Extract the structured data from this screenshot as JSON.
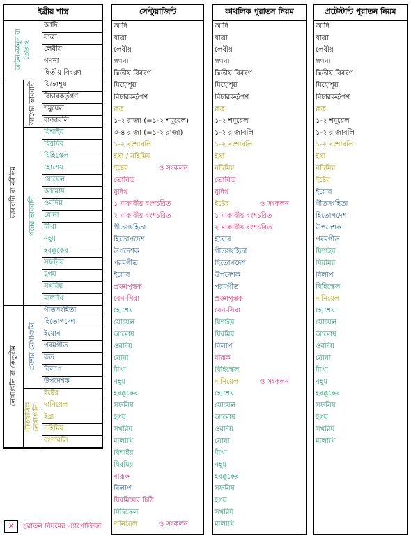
{
  "columns": [
    {
      "title": "ইব্রীয় শাস্ত্র",
      "groups": [
        {
          "label": "আইন-কানুন বা তোরাহ",
          "color": "#1a9a6a",
          "items": [
            {
              "text": "আদি",
              "color": "#000000"
            },
            {
              "text": "যাত্রা",
              "color": "#000000"
            },
            {
              "text": "লেবীয়",
              "color": "#000000"
            },
            {
              "text": "গণনা",
              "color": "#000000"
            },
            {
              "text": "দ্বিতীয় বিবরণ",
              "color": "#000000"
            }
          ]
        },
        {
          "label": "ভাববাদী বা নবীঈম",
          "color": "#000000",
          "subgroups": [
            {
              "label": "আগের ভাববাদী",
              "color": "#000000",
              "items": [
                {
                  "text": "যিহোশূয়",
                  "color": "#000000"
                },
                {
                  "text": "বিচারকর্তৃগণ",
                  "color": "#000000"
                },
                {
                  "text": "শমুয়েল",
                  "color": "#000000"
                },
                {
                  "text": "রাজাবলি",
                  "color": "#000000"
                }
              ]
            },
            {
              "label": "পরের ভাববাদী",
              "color": "#1a9a6a",
              "items": [
                {
                  "text": "যিশাইয়",
                  "color": "#1a9a6a"
                },
                {
                  "text": "যিরমিয়",
                  "color": "#1a9a6a"
                },
                {
                  "text": "যিহিস্কেল",
                  "color": "#1a9a6a"
                },
                {
                  "text": "হোশেয়",
                  "color": "#1a9a6a"
                },
                {
                  "text": "যোয়েল",
                  "color": "#1a9a6a"
                },
                {
                  "text": "আমোষ",
                  "color": "#1a9a6a"
                },
                {
                  "text": "ওবদিয়",
                  "color": "#1a9a6a"
                },
                {
                  "text": "যোনা",
                  "color": "#1a9a6a"
                },
                {
                  "text": "মীখা",
                  "color": "#1a9a6a"
                },
                {
                  "text": "নহূম",
                  "color": "#1a9a6a"
                },
                {
                  "text": "হবক্কূকের",
                  "color": "#1a9a6a"
                },
                {
                  "text": "সফনিয়",
                  "color": "#1a9a6a"
                },
                {
                  "text": "হগয়",
                  "color": "#1a9a6a"
                },
                {
                  "text": "সখরিয়",
                  "color": "#1a9a6a"
                },
                {
                  "text": "মালাখি",
                  "color": "#1a9a6a"
                }
              ]
            }
          ]
        },
        {
          "label": "লেখাগুলি বা কেতুবীম",
          "color": "#000000",
          "subgroups": [
            {
              "label": "প্রজ্ঞার লেখাগুলি",
              "color": "#1f5a8a",
              "items": [
                {
                  "text": "গীতসংহিতা",
                  "color": "#1f5a8a"
                },
                {
                  "text": "হিতোপদেশ",
                  "color": "#1f5a8a"
                },
                {
                  "text": "ইয়োব",
                  "color": "#1f5a8a"
                },
                {
                  "text": "পরমগীত",
                  "color": "#1f5a8a"
                },
                {
                  "text": "রূত",
                  "color": "#1f5a8a"
                },
                {
                  "text": "বিলাপ",
                  "color": "#1f5a8a"
                },
                {
                  "text": "উপদেশক",
                  "color": "#1f5a8a"
                }
              ]
            },
            {
              "label": "ঐতিহাসিক লেখাগুলি",
              "color": "#a8a000",
              "items": [
                {
                  "text": "ইষ্টের",
                  "color": "#a8a000"
                },
                {
                  "text": "দানিয়েল",
                  "color": "#a8a000"
                },
                {
                  "text": "ইষ্রা",
                  "color": "#a8a000"
                },
                {
                  "text": "নহিমিয়",
                  "color": "#a8a000"
                },
                {
                  "text": "বংশাবলি",
                  "color": "#a8a000"
                }
              ]
            }
          ]
        }
      ]
    },
    {
      "title": "সেপ্টুয়াজিন্ট",
      "items": [
        {
          "text": "আদি",
          "color": "#000000"
        },
        {
          "text": "যাত্রা",
          "color": "#000000"
        },
        {
          "text": "লেবীয়",
          "color": "#000000"
        },
        {
          "text": "গণনা",
          "color": "#000000"
        },
        {
          "text": "দ্বিতীয় বিবরণ",
          "color": "#000000"
        },
        {
          "text": "যিহোশূয়",
          "color": "#000000"
        },
        {
          "text": "বিচারকর্তৃগণ",
          "color": "#000000"
        },
        {
          "text": "রূত",
          "color": "#a8a000"
        },
        {
          "text": "১-২ রাজা (=১-২ শমূয়েল)",
          "color": "#000000"
        },
        {
          "text": "৩-৪ রাজা (=১-২ রাজা)",
          "color": "#000000"
        },
        {
          "text": "১-২ বংশাবলি",
          "color": "#a8a000"
        },
        {
          "text": "ইষ্রা / নহিমিয়",
          "color": "#a8a000"
        },
        {
          "text": "ইষ্টের",
          "color": "#a8a000",
          "note": "ও সংকলন",
          "note_color": "#e8206a"
        },
        {
          "text": "তোবিত",
          "color": "#e8206a"
        },
        {
          "text": "যুদিথ",
          "color": "#e8206a"
        },
        {
          "text": "১ মাকাবীয় বংশচরিত",
          "color": "#e8206a"
        },
        {
          "text": "২ মাকাবীয় বংশচরিত",
          "color": "#e8206a"
        },
        {
          "text": "গীতসংহিতা",
          "color": "#1f5a8a"
        },
        {
          "text": "হিতোপদেশ",
          "color": "#1f5a8a"
        },
        {
          "text": "উপদেশক",
          "color": "#1f5a8a"
        },
        {
          "text": "পরমগীত",
          "color": "#1f5a8a"
        },
        {
          "text": "ইয়োব",
          "color": "#1f5a8a"
        },
        {
          "text": "প্রজ্ঞাপুস্তক",
          "color": "#e8206a"
        },
        {
          "text": "বেন-সিরা",
          "color": "#e8206a"
        },
        {
          "text": "হোশেয়",
          "color": "#1a9a6a"
        },
        {
          "text": "যোয়েল",
          "color": "#1a9a6a"
        },
        {
          "text": "আমোষ",
          "color": "#1a9a6a"
        },
        {
          "text": "ওবদিয়",
          "color": "#1a9a6a"
        },
        {
          "text": "যোনা",
          "color": "#1a9a6a"
        },
        {
          "text": "মীখা",
          "color": "#1a9a6a"
        },
        {
          "text": "নহূম",
          "color": "#1a9a6a"
        },
        {
          "text": "হবক্কূকের",
          "color": "#1a9a6a"
        },
        {
          "text": "সফনিয়",
          "color": "#1a9a6a"
        },
        {
          "text": "হগয়",
          "color": "#1a9a6a"
        },
        {
          "text": "সখরিয়",
          "color": "#1a9a6a"
        },
        {
          "text": "মালাখি",
          "color": "#1a9a6a"
        },
        {
          "text": "যিশাইয়",
          "color": "#1a9a6a"
        },
        {
          "text": "যিরমিয়",
          "color": "#1a9a6a"
        },
        {
          "text": "বারূক",
          "color": "#e8206a"
        },
        {
          "text": "বিলাপ",
          "color": "#1f5a8a"
        },
        {
          "text": "যিরমিয়ের চিঠি",
          "color": "#e8206a"
        },
        {
          "text": "যিহিস্কেল",
          "color": "#1a9a6a"
        },
        {
          "text": "দানিয়েল",
          "color": "#a8a000",
          "note": "ও সংকলন",
          "note_color": "#e8206a"
        }
      ]
    },
    {
      "title": "কাথলিক পুরাতন নিয়ম",
      "items": [
        {
          "text": "আদি",
          "color": "#000000"
        },
        {
          "text": "যাত্রা",
          "color": "#000000"
        },
        {
          "text": "লেবীয়",
          "color": "#000000"
        },
        {
          "text": "গণনা",
          "color": "#000000"
        },
        {
          "text": "দ্বিতীয় বিবরণ",
          "color": "#000000"
        },
        {
          "text": "যিহোশূয়",
          "color": "#000000"
        },
        {
          "text": "বিচারকর্তৃগণ",
          "color": "#000000"
        },
        {
          "text": "রূত",
          "color": "#a8a000"
        },
        {
          "text": "১-২ শমূয়েল",
          "color": "#000000"
        },
        {
          "text": "১-২ রাজাবলি",
          "color": "#000000"
        },
        {
          "text": "১-২ বংশাবলি",
          "color": "#a8a000"
        },
        {
          "text": "ইষ্রা",
          "color": "#a8a000"
        },
        {
          "text": "নহিমিয়",
          "color": "#a8a000"
        },
        {
          "text": "তোবিত",
          "color": "#e8206a"
        },
        {
          "text": "যুদিথ",
          "color": "#e8206a"
        },
        {
          "text": "ইষ্টের",
          "color": "#a8a000",
          "note": "ও সংকলন",
          "note_color": "#e8206a"
        },
        {
          "text": "১ মাকাবীয় বংশচরিত",
          "color": "#e8206a"
        },
        {
          "text": "২ মাকাবীয় বংশচরিত",
          "color": "#e8206a"
        },
        {
          "text": "ইয়োব",
          "color": "#1f5a8a"
        },
        {
          "text": "গীতসংহিতা",
          "color": "#1f5a8a"
        },
        {
          "text": "হিতোপদেশ",
          "color": "#1f5a8a"
        },
        {
          "text": "উপদেশক",
          "color": "#1f5a8a"
        },
        {
          "text": "পরমগীত",
          "color": "#1f5a8a"
        },
        {
          "text": "প্রজ্ঞাপুস্তক",
          "color": "#e8206a"
        },
        {
          "text": "বেন-সিরা",
          "color": "#e8206a"
        },
        {
          "text": "যিশাইয়",
          "color": "#1a9a6a"
        },
        {
          "text": "যিরমিয়",
          "color": "#1a9a6a"
        },
        {
          "text": "বিলাপ",
          "color": "#1f5a8a"
        },
        {
          "text": "বারূক",
          "color": "#e8206a"
        },
        {
          "text": "যিহিস্কেল",
          "color": "#1a9a6a"
        },
        {
          "text": "দানিয়েল",
          "color": "#a8a000",
          "note": "ও সংকলন",
          "note_color": "#e8206a"
        },
        {
          "text": "হোশেয়",
          "color": "#1a9a6a"
        },
        {
          "text": "যোয়েল",
          "color": "#1a9a6a"
        },
        {
          "text": "আমোষ",
          "color": "#1a9a6a"
        },
        {
          "text": "ওবদিয়",
          "color": "#1a9a6a"
        },
        {
          "text": "যোনা",
          "color": "#1a9a6a"
        },
        {
          "text": "মীখা",
          "color": "#1a9a6a"
        },
        {
          "text": "নহূম",
          "color": "#1a9a6a"
        },
        {
          "text": "হবক্কূকের",
          "color": "#1a9a6a"
        },
        {
          "text": "সফনিয়",
          "color": "#1a9a6a"
        },
        {
          "text": "হগয়",
          "color": "#1a9a6a"
        },
        {
          "text": "সখরিয়",
          "color": "#1a9a6a"
        },
        {
          "text": "মালাখি",
          "color": "#1a9a6a"
        }
      ]
    },
    {
      "title": "প্রটেস্টান্ট পুরাতন নিয়ম",
      "items": [
        {
          "text": "আদি",
          "color": "#000000"
        },
        {
          "text": "যাত্রা",
          "color": "#000000"
        },
        {
          "text": "লেবীয়",
          "color": "#000000"
        },
        {
          "text": "গণনা",
          "color": "#000000"
        },
        {
          "text": "দ্বিতীয় বিবরণ",
          "color": "#000000"
        },
        {
          "text": "যিহোশূয়",
          "color": "#000000"
        },
        {
          "text": "বিচারকর্তৃগণ",
          "color": "#000000"
        },
        {
          "text": "রূত",
          "color": "#a8a000"
        },
        {
          "text": "১-২ শমূয়েল",
          "color": "#000000"
        },
        {
          "text": "১-২ রাজাবলি",
          "color": "#000000"
        },
        {
          "text": "১-২ বংশাবলি",
          "color": "#a8a000"
        },
        {
          "text": "ইষ্রা",
          "color": "#a8a000"
        },
        {
          "text": "নহিমিয়",
          "color": "#a8a000"
        },
        {
          "text": "ইষ্টের",
          "color": "#a8a000"
        },
        {
          "text": "ইয়োব",
          "color": "#1f5a8a"
        },
        {
          "text": "গীতসংহিতা",
          "color": "#1f5a8a"
        },
        {
          "text": "হিতোপদেশ",
          "color": "#1f5a8a"
        },
        {
          "text": "উপদেশক",
          "color": "#1f5a8a"
        },
        {
          "text": "পরমগীত",
          "color": "#1f5a8a"
        },
        {
          "text": "যিশাইয়",
          "color": "#1a9a6a"
        },
        {
          "text": "যিরমিয়",
          "color": "#1a9a6a"
        },
        {
          "text": "বিলাপ",
          "color": "#1f5a8a"
        },
        {
          "text": "যিহিস্কেল",
          "color": "#1a9a6a"
        },
        {
          "text": "দানিয়েল",
          "color": "#a8a000"
        },
        {
          "text": "হোশেয়",
          "color": "#1a9a6a"
        },
        {
          "text": "যোয়েল",
          "color": "#1a9a6a"
        },
        {
          "text": "আমোষ",
          "color": "#1a9a6a"
        },
        {
          "text": "ওবদিয়",
          "color": "#1a9a6a"
        },
        {
          "text": "যোনা",
          "color": "#1a9a6a"
        },
        {
          "text": "মীখা",
          "color": "#1a9a6a"
        },
        {
          "text": "নহূম",
          "color": "#1a9a6a"
        },
        {
          "text": "হবক্কূকের",
          "color": "#1a9a6a"
        },
        {
          "text": "সফনিয়",
          "color": "#1a9a6a"
        },
        {
          "text": "হগয়",
          "color": "#1a9a6a"
        },
        {
          "text": "সখরিয়",
          "color": "#1a9a6a"
        },
        {
          "text": "মালাখি",
          "color": "#1a9a6a"
        }
      ]
    }
  ],
  "legend": {
    "symbol": "X",
    "text": "পুরাতন নিয়মের এ্যাপোক্রিফা",
    "color": "#e8206a"
  }
}
